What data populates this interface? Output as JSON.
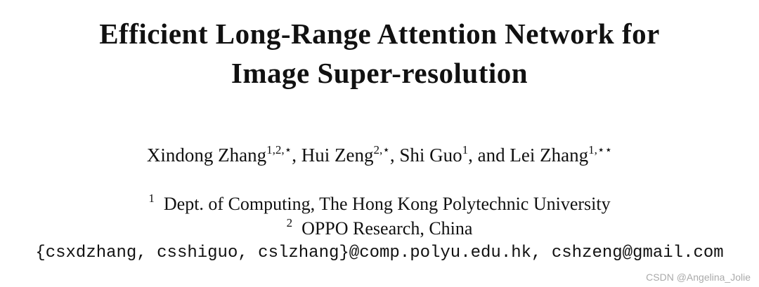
{
  "title": {
    "lines": [
      "Efficient Long-Range Attention Network for",
      "Image Super-resolution"
    ]
  },
  "authors": [
    {
      "name": "Xindong Zhang",
      "marks": "1,2,⋆",
      "separator": ", "
    },
    {
      "name": "Hui Zeng",
      "marks": "2,⋆",
      "separator": ", "
    },
    {
      "name": "Shi Guo",
      "marks": "1",
      "separator": ", and "
    },
    {
      "name": "Lei Zhang",
      "marks": "1,⋆⋆"
    }
  ],
  "affiliations": [
    {
      "mark": "1",
      "text": "Dept. of Computing, The Hong Kong Polytechnic University"
    },
    {
      "mark": "2",
      "text": "OPPO Research, China"
    }
  ],
  "emails": "{csxdzhang, csshiguo, cslzhang}@comp.polyu.edu.hk, cshzeng@gmail.com",
  "watermark": "CSDN @Angelina_Jolie"
}
